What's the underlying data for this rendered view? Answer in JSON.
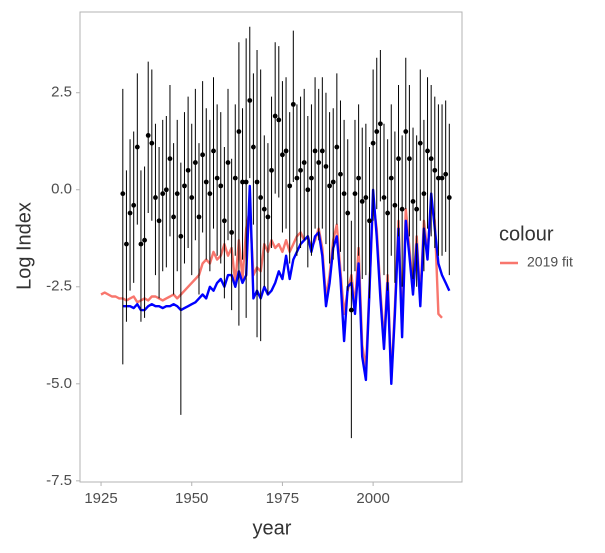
{
  "chart_data": {
    "type": "line",
    "xlabel": "year",
    "ylabel": "Log Index",
    "legend_title": "colour",
    "xlim": [
      1919.2,
      2024.5
    ],
    "xticks": [
      1925,
      1950,
      1975,
      2000
    ],
    "ylim": [
      -7.53,
      4.58
    ],
    "yticks": [
      2.5,
      {
        "value": 0,
        "label": "0.0"
      },
      -2.5,
      {
        "value": -5,
        "label": "-5.0"
      },
      -7.5
    ],
    "points": {
      "color": "#000000",
      "x": [
        1931,
        1932,
        1933,
        1934,
        1935,
        1936,
        1937,
        1938,
        1939,
        1940,
        1941,
        1942,
        1943,
        1944,
        1945,
        1946,
        1947,
        1948,
        1949,
        1950,
        1951,
        1952,
        1953,
        1954,
        1955,
        1956,
        1957,
        1958,
        1959,
        1960,
        1961,
        1962,
        1963,
        1964,
        1965,
        1966,
        1967,
        1968,
        1969,
        1970,
        1971,
        1972,
        1973,
        1974,
        1975,
        1976,
        1977,
        1978,
        1979,
        1980,
        1981,
        1982,
        1983,
        1984,
        1985,
        1986,
        1987,
        1988,
        1989,
        1990,
        1991,
        1992,
        1993,
        1994,
        1995,
        1996,
        1997,
        1998,
        1999,
        2000,
        2001,
        2002,
        2003,
        2004,
        2005,
        2006,
        2007,
        2008,
        2009,
        2010,
        2011,
        2012,
        2013,
        2014,
        2015,
        2016,
        2017,
        2018,
        2019,
        2020,
        2021
      ],
      "values": [
        -0.1,
        -1.4,
        -0.6,
        -0.4,
        1.1,
        -1.4,
        -1.3,
        1.4,
        1.2,
        -0.2,
        -0.8,
        -0.1,
        0.0,
        0.8,
        -0.7,
        -0.1,
        -1.2,
        0.1,
        0.5,
        -0.2,
        0.7,
        -0.7,
        0.9,
        0.2,
        -0.1,
        1.0,
        0.3,
        0.1,
        -0.8,
        0.7,
        -1.1,
        0.3,
        1.5,
        0.2,
        0.2,
        2.3,
        1.1,
        0.2,
        -0.2,
        -0.5,
        -0.7,
        0.5,
        1.9,
        1.8,
        0.9,
        1.0,
        0.1,
        2.2,
        0.3,
        0.5,
        0.7,
        0.0,
        0.3,
        1.0,
        0.7,
        1.0,
        0.6,
        0.1,
        0.2,
        1.1,
        0.4,
        -0.1,
        -0.6,
        -3.1,
        -0.1,
        0.3,
        -0.3,
        -0.2,
        -0.8,
        1.2,
        1.5,
        1.7,
        -0.2,
        -0.6,
        0.3,
        -0.4,
        0.8,
        -0.5,
        1.5,
        0.8,
        -0.3,
        -0.5,
        1.2,
        -0.1,
        1.0,
        0.8,
        0.5,
        0.3,
        0.3,
        0.4,
        -0.2
      ],
      "upper": [
        2.6,
        0.5,
        1.3,
        1.5,
        3.0,
        0.5,
        0.6,
        3.3,
        3.1,
        1.7,
        1.1,
        1.8,
        1.9,
        2.7,
        1.2,
        1.8,
        0.7,
        2.0,
        2.4,
        1.7,
        2.6,
        1.2,
        2.8,
        2.1,
        1.8,
        2.9,
        2.2,
        2.0,
        1.1,
        2.6,
        0.8,
        2.2,
        3.8,
        2.1,
        3.9,
        4.2,
        3.0,
        3.6,
        3.1,
        1.4,
        1.2,
        2.4,
        3.8,
        3.7,
        2.8,
        2.9,
        2.0,
        4.1,
        2.2,
        2.4,
        2.6,
        1.9,
        2.2,
        2.9,
        2.6,
        2.9,
        2.5,
        2.0,
        2.1,
        3.0,
        2.3,
        1.8,
        1.3,
        -0.8,
        1.8,
        2.2,
        1.6,
        1.7,
        1.1,
        3.1,
        3.4,
        3.6,
        1.7,
        1.3,
        2.2,
        1.5,
        2.7,
        1.4,
        3.4,
        2.7,
        1.6,
        1.4,
        3.1,
        1.8,
        2.9,
        2.7,
        2.4,
        2.2,
        2.2,
        2.3,
        1.7
      ],
      "lower": [
        -4.5,
        -3.4,
        -2.6,
        -2.4,
        -0.9,
        -3.4,
        -3.3,
        -0.6,
        -0.8,
        -2.2,
        -2.8,
        -2.1,
        -2.0,
        -1.2,
        -2.7,
        -2.1,
        -5.8,
        -1.9,
        -1.5,
        -2.2,
        -1.3,
        -2.7,
        -1.1,
        -1.8,
        -2.1,
        -1.0,
        -1.7,
        -1.9,
        -2.8,
        -1.3,
        -3.1,
        -1.7,
        -3.5,
        -1.8,
        -3.3,
        0.3,
        -0.9,
        -3.8,
        -3.9,
        -2.5,
        -2.7,
        -1.5,
        -0.1,
        -0.2,
        -1.1,
        -1.0,
        -1.9,
        0.2,
        -1.7,
        -1.5,
        -1.3,
        -2.0,
        -1.7,
        -1.0,
        -1.3,
        -1.0,
        -1.4,
        -1.9,
        -1.8,
        -0.9,
        -1.6,
        -2.1,
        -2.6,
        -6.4,
        -2.1,
        -1.7,
        -2.3,
        -2.2,
        -2.8,
        -0.8,
        -0.5,
        -0.3,
        -2.2,
        -2.6,
        -1.7,
        -2.4,
        -1.2,
        -2.5,
        -0.5,
        -1.2,
        -2.3,
        -2.5,
        -0.8,
        -2.1,
        -1.0,
        -1.2,
        -1.5,
        -1.7,
        -1.7,
        -1.6,
        -2.2
      ]
    },
    "series": [
      {
        "name": "2019 fit",
        "color": "#F8766D",
        "x": [
          1925,
          1926,
          1927,
          1928,
          1929,
          1930,
          1931,
          1932,
          1933,
          1934,
          1935,
          1936,
          1937,
          1938,
          1939,
          1940,
          1941,
          1942,
          1943,
          1944,
          1945,
          1946,
          1947,
          1948,
          1949,
          1950,
          1951,
          1952,
          1953,
          1954,
          1955,
          1956,
          1957,
          1958,
          1959,
          1960,
          1961,
          1962,
          1963,
          1964,
          1965,
          1966,
          1967,
          1968,
          1969,
          1970,
          1971,
          1972,
          1973,
          1974,
          1975,
          1976,
          1977,
          1978,
          1979,
          1980,
          1981,
          1982,
          1983,
          1984,
          1985,
          1986,
          1987,
          1988,
          1989,
          1990,
          1991,
          1992,
          1993,
          1994,
          1995,
          1996,
          1997,
          1998,
          1999,
          2000,
          2001,
          2002,
          2003,
          2004,
          2005,
          2006,
          2007,
          2008,
          2009,
          2010,
          2011,
          2012,
          2013,
          2014,
          2015,
          2016,
          2017,
          2018,
          2019
        ],
        "values": [
          -2.7,
          -2.65,
          -2.7,
          -2.75,
          -2.75,
          -2.8,
          -2.8,
          -2.85,
          -2.8,
          -2.75,
          -2.9,
          -2.85,
          -2.8,
          -2.85,
          -2.75,
          -2.75,
          -2.8,
          -2.85,
          -2.8,
          -2.75,
          -2.7,
          -2.8,
          -2.7,
          -2.6,
          -2.5,
          -2.4,
          -2.3,
          -2.2,
          -1.9,
          -1.8,
          -1.9,
          -1.6,
          -1.8,
          -1.7,
          -1.4,
          -1.7,
          -1.5,
          -2.4,
          -1.3,
          -2.3,
          -1.0,
          -0.5,
          -2.2,
          -2.0,
          -2.1,
          -1.4,
          -1.6,
          -1.3,
          -1.5,
          -1.4,
          -1.6,
          -1.3,
          -1.6,
          -1.4,
          -1.2,
          -1.1,
          -1.3,
          -1.2,
          -1.5,
          -1.3,
          -1.0,
          -1.5,
          -2.8,
          -2.2,
          -1.3,
          -0.9,
          -2.1,
          -3.2,
          -2.6,
          -2.2,
          -3.0,
          -1.5,
          -4.0,
          -4.6,
          -2.5,
          -0.3,
          -1.0,
          -2.6,
          -3.9,
          -2.2,
          -4.9,
          -3.0,
          -0.8,
          -3.6,
          -0.5,
          -1.5,
          -2.5,
          -1.2,
          -2.8,
          -0.8,
          -1.6,
          -0.4,
          -0.8,
          -3.2,
          -3.3
        ]
      },
      {
        "color": "#0000FF",
        "x": [
          1931,
          1932,
          1933,
          1934,
          1935,
          1936,
          1937,
          1938,
          1939,
          1940,
          1941,
          1942,
          1943,
          1944,
          1945,
          1946,
          1947,
          1948,
          1949,
          1950,
          1951,
          1952,
          1953,
          1954,
          1955,
          1956,
          1957,
          1958,
          1959,
          1960,
          1961,
          1962,
          1963,
          1964,
          1965,
          1966,
          1967,
          1968,
          1969,
          1970,
          1971,
          1972,
          1973,
          1974,
          1975,
          1976,
          1977,
          1978,
          1979,
          1980,
          1981,
          1982,
          1983,
          1984,
          1985,
          1986,
          1987,
          1988,
          1989,
          1990,
          1991,
          1992,
          1993,
          1994,
          1995,
          1996,
          1997,
          1998,
          1999,
          2000,
          2001,
          2002,
          2003,
          2004,
          2005,
          2006,
          2007,
          2008,
          2009,
          2010,
          2011,
          2012,
          2013,
          2014,
          2015,
          2016,
          2017,
          2018,
          2019,
          2020,
          2021
        ],
        "values": [
          -3.0,
          -3.0,
          -3.0,
          -3.05,
          -2.95,
          -3.1,
          -3.1,
          -3.0,
          -2.95,
          -3.0,
          -3.0,
          -3.05,
          -3.0,
          -3.0,
          -2.95,
          -3.0,
          -3.1,
          -3.05,
          -3.0,
          -2.95,
          -2.9,
          -2.8,
          -2.7,
          -2.8,
          -2.5,
          -2.6,
          -2.4,
          -2.3,
          -2.5,
          -2.2,
          -2.2,
          -2.5,
          -2.1,
          -2.4,
          -2.2,
          0.1,
          -2.8,
          -2.6,
          -2.8,
          -2.5,
          -2.7,
          -2.6,
          -2.4,
          -2.1,
          -2.3,
          -1.7,
          -2.3,
          -1.8,
          -1.6,
          -1.4,
          -1.3,
          -1.2,
          -1.6,
          -1.2,
          -1.1,
          -1.7,
          -3.0,
          -2.4,
          -1.5,
          -1.2,
          -2.3,
          -3.9,
          -2.5,
          -2.4,
          -3.2,
          -1.9,
          -4.3,
          -4.9,
          -2.6,
          0.0,
          -1.2,
          -2.8,
          -4.1,
          -2.4,
          -5.0,
          -3.2,
          -1.0,
          -3.8,
          -0.8,
          -1.7,
          -2.7,
          -1.4,
          -3.0,
          -1.0,
          -1.8,
          -0.1,
          -1.0,
          -1.9,
          -2.2,
          -2.4,
          -2.6
        ]
      }
    ]
  }
}
